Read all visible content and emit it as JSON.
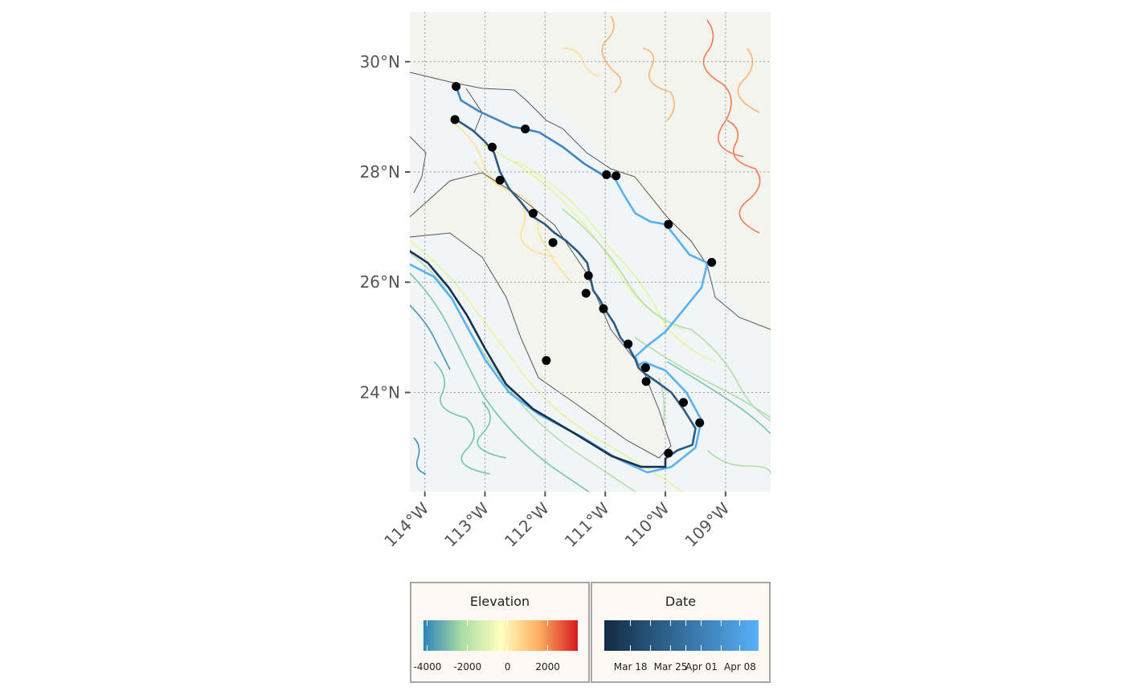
{
  "map": {
    "lat_labels": [
      "30°N",
      "28°N",
      "26°N",
      "24°N"
    ],
    "lon_labels": [
      "114°W",
      "113°W",
      "112°W",
      "111°W",
      "110°W",
      "109°W"
    ],
    "lat_range": [
      22.2,
      30.9
    ],
    "lon_range": [
      -114.25,
      -108.25
    ],
    "grid": true,
    "colors": {
      "panel_bg": "#f4f4ef",
      "sea": "#f2f5f6",
      "coast": "#555555",
      "track_start": "#132b43",
      "track_end": "#56b1f7",
      "points": "#000000"
    },
    "tracks": [
      {
        "color": "#3f86c2",
        "points": [
          [
            -113.48,
            29.55
          ],
          [
            -113.4,
            29.3
          ],
          [
            -113.1,
            29.1
          ],
          [
            -112.8,
            28.95
          ],
          [
            -112.55,
            28.82
          ],
          [
            -112.35,
            28.78
          ],
          [
            -112.1,
            28.72
          ],
          [
            -111.7,
            28.45
          ],
          [
            -111.35,
            28.15
          ],
          [
            -111.05,
            27.95
          ],
          [
            -110.85,
            27.9
          ]
        ]
      },
      {
        "color": "#56b1f7",
        "points": [
          [
            -110.85,
            27.9
          ],
          [
            -110.7,
            27.6
          ],
          [
            -110.5,
            27.25
          ],
          [
            -110.25,
            27.1
          ],
          [
            -110.0,
            27.05
          ],
          [
            -109.85,
            26.85
          ],
          [
            -109.6,
            26.5
          ],
          [
            -109.3,
            26.35
          ],
          [
            -109.4,
            25.9
          ],
          [
            -109.7,
            25.5
          ],
          [
            -110.0,
            25.1
          ],
          [
            -110.3,
            24.85
          ],
          [
            -110.5,
            24.65
          ],
          [
            -110.45,
            24.5
          ],
          [
            -110.35,
            24.55
          ],
          [
            -110.0,
            24.4
          ],
          [
            -109.65,
            24.0
          ],
          [
            -109.4,
            23.5
          ],
          [
            -109.5,
            23.0
          ],
          [
            -109.9,
            22.65
          ],
          [
            -110.3,
            22.55
          ],
          [
            -110.8,
            22.8
          ],
          [
            -111.4,
            23.2
          ],
          [
            -112.1,
            23.6
          ],
          [
            -112.6,
            24.0
          ],
          [
            -113.0,
            24.6
          ],
          [
            -113.3,
            25.2
          ],
          [
            -113.55,
            25.7
          ],
          [
            -113.85,
            26.1
          ],
          [
            -114.3,
            26.35
          ]
        ]
      },
      {
        "color": "#2a5a84",
        "points": [
          [
            -113.48,
            28.95
          ],
          [
            -113.2,
            28.75
          ],
          [
            -113.0,
            28.55
          ],
          [
            -112.85,
            28.35
          ],
          [
            -112.75,
            28.0
          ],
          [
            -112.6,
            27.7
          ],
          [
            -112.4,
            27.45
          ],
          [
            -112.22,
            27.2
          ],
          [
            -112.0,
            27.05
          ],
          [
            -111.85,
            26.9
          ],
          [
            -111.65,
            26.75
          ],
          [
            -111.45,
            26.55
          ],
          [
            -111.3,
            26.35
          ],
          [
            -111.25,
            26.1
          ],
          [
            -111.2,
            25.85
          ],
          [
            -111.1,
            25.7
          ],
          [
            -111.0,
            25.5
          ],
          [
            -110.85,
            25.25
          ],
          [
            -110.75,
            25.0
          ],
          [
            -110.6,
            24.8
          ],
          [
            -110.5,
            24.6
          ],
          [
            -110.45,
            24.45
          ],
          [
            -110.35,
            24.35
          ],
          [
            -110.15,
            24.2
          ],
          [
            -109.9,
            24.0
          ],
          [
            -109.7,
            23.7
          ],
          [
            -109.5,
            23.35
          ],
          [
            -109.55,
            23.05
          ],
          [
            -109.8,
            22.95
          ],
          [
            -110.0,
            22.8
          ]
        ]
      },
      {
        "color": "#17324d",
        "points": [
          [
            -110.0,
            22.8
          ],
          [
            -110.0,
            22.65
          ],
          [
            -110.4,
            22.65
          ],
          [
            -110.9,
            22.85
          ],
          [
            -111.5,
            23.25
          ],
          [
            -112.2,
            23.7
          ],
          [
            -112.65,
            24.15
          ],
          [
            -113.0,
            24.8
          ],
          [
            -113.3,
            25.4
          ],
          [
            -113.6,
            25.9
          ],
          [
            -113.95,
            26.35
          ],
          [
            -114.3,
            26.6
          ]
        ]
      }
    ],
    "locations": [
      [
        -113.48,
        29.55
      ],
      [
        -113.5,
        28.95
      ],
      [
        -112.33,
        28.78
      ],
      [
        -112.88,
        28.45
      ],
      [
        -112.75,
        27.85
      ],
      [
        -112.2,
        27.25
      ],
      [
        -111.87,
        26.72
      ],
      [
        -111.28,
        26.12
      ],
      [
        -111.32,
        25.8
      ],
      [
        -111.03,
        25.52
      ],
      [
        -110.62,
        24.88
      ],
      [
        -110.33,
        24.45
      ],
      [
        -110.32,
        24.2
      ],
      [
        -109.7,
        23.82
      ],
      [
        -109.43,
        23.45
      ],
      [
        -109.95,
        22.9
      ],
      [
        -111.98,
        24.58
      ],
      [
        -110.98,
        27.95
      ],
      [
        -110.82,
        27.93
      ],
      [
        -109.95,
        27.05
      ],
      [
        -109.23,
        26.36
      ]
    ]
  },
  "legend": {
    "elevation": {
      "title": "Elevation",
      "range": [
        -4200,
        3500
      ],
      "ticks": [
        {
          "value": -4000,
          "label": "-4000"
        },
        {
          "value": -2000,
          "label": "-2000"
        },
        {
          "value": 0,
          "label": "0"
        },
        {
          "value": 2000,
          "label": "2000"
        }
      ],
      "colors": [
        "#2b83ba",
        "#abdda4",
        "#ffffbf",
        "#fdae61",
        "#d7191c"
      ]
    },
    "date": {
      "title": "Date",
      "ticks": [
        "Mar 18",
        "Mar 25",
        "Apr 01",
        "Apr 08"
      ],
      "tick_fractions": [
        0.17,
        0.43,
        0.63,
        0.88
      ],
      "colors": [
        "#132b43",
        "#56b1f7"
      ]
    }
  }
}
